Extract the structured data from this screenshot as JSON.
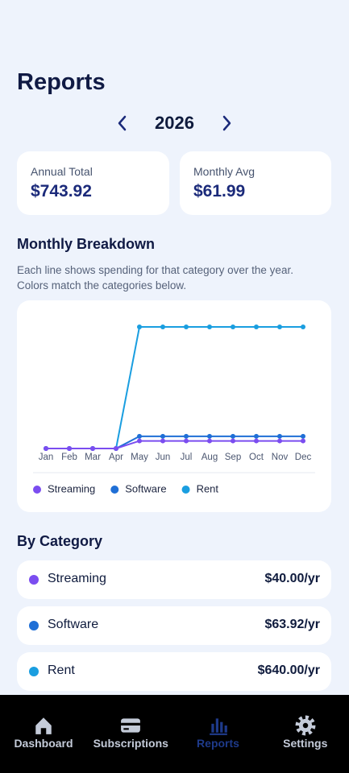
{
  "header": {
    "title": "Reports",
    "year": "2026"
  },
  "summary": [
    {
      "label": "Annual Total",
      "value": "$743.92"
    },
    {
      "label": "Monthly Avg",
      "value": "$61.99"
    }
  ],
  "breakdown": {
    "title": "Monthly Breakdown",
    "description": "Each line shows spending for that category over the year. Colors match the categories below."
  },
  "chart_data": {
    "type": "line",
    "categories": [
      "Jan",
      "Feb",
      "Mar",
      "Apr",
      "May",
      "Jun",
      "Jul",
      "Aug",
      "Sep",
      "Oct",
      "Nov",
      "Dec"
    ],
    "series": [
      {
        "name": "Streaming",
        "color": "#7b4df0",
        "values": [
          0,
          0,
          0,
          0,
          5,
          5,
          5,
          5,
          5,
          5,
          5,
          5
        ]
      },
      {
        "name": "Software",
        "color": "#1f6fd6",
        "values": [
          0,
          0,
          0,
          0,
          7.99,
          7.99,
          7.99,
          7.99,
          7.99,
          7.99,
          7.99,
          7.99
        ]
      },
      {
        "name": "Rent",
        "color": "#1a9ee0",
        "values": [
          0,
          0,
          0,
          0,
          80,
          80,
          80,
          80,
          80,
          80,
          80,
          80
        ]
      }
    ],
    "ylim": [
      0,
      80
    ]
  },
  "by_category": {
    "title": "By Category",
    "items": [
      {
        "name": "Streaming",
        "amount": "$40.00/yr",
        "color": "#7b4df0"
      },
      {
        "name": "Software",
        "amount": "$63.92/yr",
        "color": "#1f6fd6"
      },
      {
        "name": "Rent",
        "amount": "$640.00/yr",
        "color": "#1a9ee0"
      }
    ]
  },
  "nav": [
    {
      "label": "Dashboard"
    },
    {
      "label": "Subscriptions"
    },
    {
      "label": "Reports",
      "active": true
    },
    {
      "label": "Settings"
    }
  ]
}
